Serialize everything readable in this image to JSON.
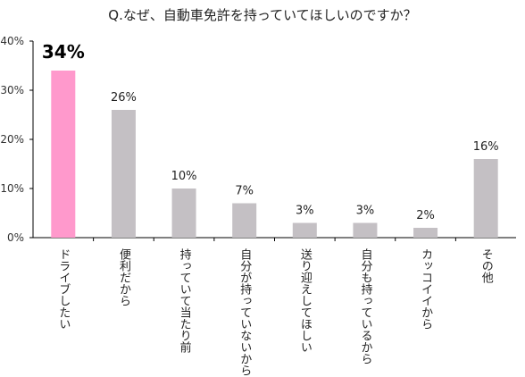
{
  "chart_data": {
    "type": "bar",
    "title": "Q.なぜ、自動車免許を持っていてほしいのですか？",
    "categories": [
      "ドライブしたい",
      "便利だから",
      "持っていて当たり前",
      "自分が持っていないから",
      "送り迎えしてほしい",
      "自分も持っているから",
      "カッコイイから",
      "その他"
    ],
    "values": [
      34,
      26,
      10,
      7,
      3,
      3,
      2,
      16
    ],
    "value_labels": [
      "34%",
      "26%",
      "10%",
      "7%",
      "3%",
      "3%",
      "2%",
      "16%"
    ],
    "yticks": [
      "0%",
      "10%",
      "20%",
      "30%",
      "40%"
    ],
    "ylim": [
      0,
      40
    ],
    "xlabel": "",
    "ylabel": "",
    "grid": false,
    "highlight_index": 0,
    "colors": {
      "highlight": "#ff99cc",
      "default": "#c4c0c4",
      "axis": "#000000"
    }
  }
}
